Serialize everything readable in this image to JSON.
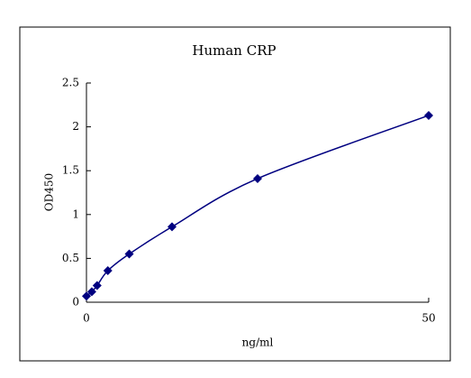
{
  "chart_data": {
    "type": "line",
    "title": "Human CRP",
    "x_label": "ng/ml",
    "y_label": "OD450",
    "x": [
      0,
      0.78,
      1.56,
      3.125,
      6.25,
      12.5,
      25,
      50
    ],
    "values": [
      0.07,
      0.12,
      0.19,
      0.36,
      0.55,
      0.86,
      1.41,
      2.13
    ],
    "color": "#000080",
    "marker": "diamond",
    "smooth": true,
    "xlim": [
      0,
      50
    ],
    "xticks": [
      0,
      50
    ],
    "ylim": [
      0,
      2.5
    ],
    "yticks": [
      0,
      0.5,
      1,
      1.5,
      2,
      2.5
    ]
  }
}
